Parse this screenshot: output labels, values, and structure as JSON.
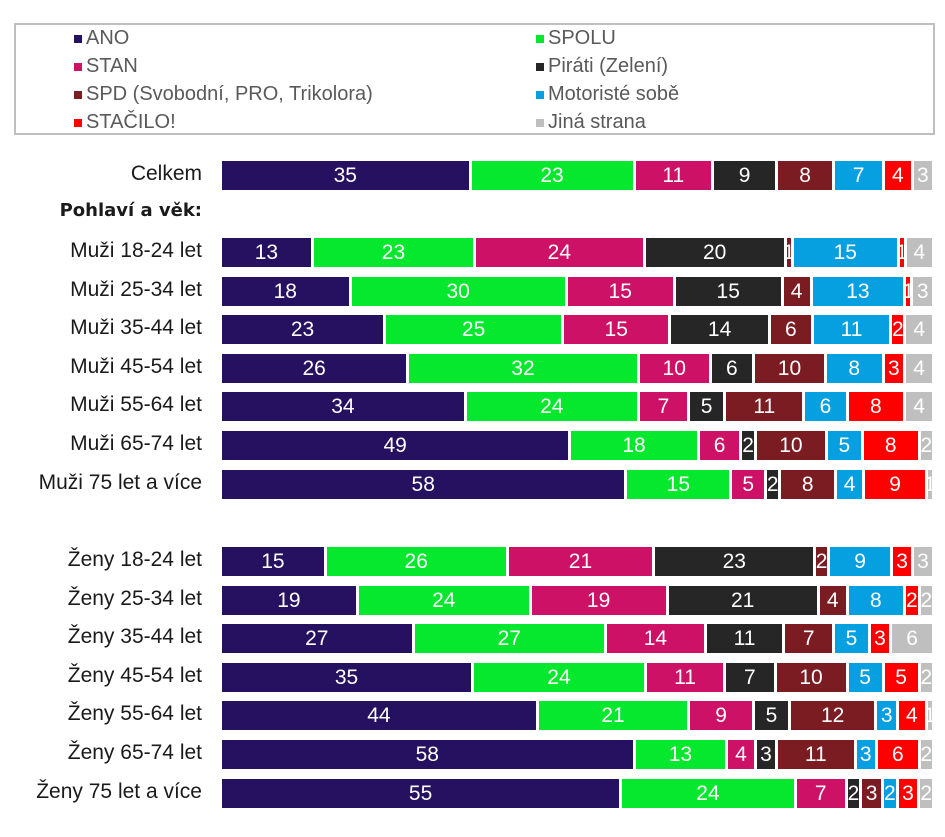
{
  "chart_data": {
    "type": "bar",
    "orientation": "horizontal",
    "stacked": true,
    "title": "",
    "xlabel": "",
    "ylabel": "",
    "xlim": [
      0,
      100
    ],
    "legend_position": "top",
    "series": [
      {
        "name": "ANO",
        "color": "#261060"
      },
      {
        "name": "SPOLU",
        "color": "#06e82e"
      },
      {
        "name": "STAN",
        "color": "#cc1166"
      },
      {
        "name": "Piráti (Zelení)",
        "color": "#262626"
      },
      {
        "name": "SPD (Svobodní, PRO, Trikolora)",
        "color": "#7a1c22"
      },
      {
        "name": "Motoristé sobě",
        "color": "#069fdf"
      },
      {
        "name": "STAČILO!",
        "color": "#ff0000"
      },
      {
        "name": "Jiná strana",
        "color": "#bfbfbf"
      }
    ],
    "legend_order": [
      0,
      1,
      2,
      3,
      4,
      5,
      6,
      7
    ],
    "section_heading": "Pohlaví a věk:",
    "rows": [
      {
        "label": "Celkem",
        "values": [
          35,
          23,
          11,
          9,
          8,
          7,
          4,
          3
        ]
      },
      {
        "label": "Muži 18-24 let",
        "values": [
          13,
          23,
          24,
          20,
          1,
          15,
          1,
          4
        ]
      },
      {
        "label": "Muži 25-34 let",
        "values": [
          18,
          30,
          15,
          15,
          4,
          13,
          1,
          3
        ]
      },
      {
        "label": "Muži 35-44 let",
        "values": [
          23,
          25,
          15,
          14,
          6,
          11,
          2,
          4
        ]
      },
      {
        "label": "Muži 45-54 let",
        "values": [
          26,
          32,
          10,
          6,
          10,
          8,
          3,
          4
        ]
      },
      {
        "label": "Muži 55-64 let",
        "values": [
          34,
          24,
          7,
          5,
          11,
          6,
          8,
          4
        ]
      },
      {
        "label": "Muži 65-74 let",
        "values": [
          49,
          18,
          6,
          2,
          10,
          5,
          8,
          2
        ]
      },
      {
        "label": "Muži 75 let a více",
        "values": [
          58,
          15,
          5,
          2,
          8,
          4,
          9,
          1
        ]
      },
      {
        "label": "Ženy 18-24 let",
        "values": [
          15,
          26,
          21,
          23,
          2,
          9,
          3,
          3
        ]
      },
      {
        "label": "Ženy 25-34 let",
        "values": [
          19,
          24,
          19,
          21,
          4,
          8,
          2,
          2
        ]
      },
      {
        "label": "Ženy 35-44 let",
        "values": [
          27,
          27,
          14,
          11,
          7,
          5,
          3,
          6
        ]
      },
      {
        "label": "Ženy 45-54 let",
        "values": [
          35,
          24,
          11,
          7,
          10,
          5,
          5,
          2
        ]
      },
      {
        "label": "Ženy 55-64 let",
        "values": [
          44,
          21,
          9,
          5,
          12,
          3,
          4,
          1
        ]
      },
      {
        "label": "Ženy 65-74 let",
        "values": [
          58,
          13,
          4,
          3,
          11,
          3,
          6,
          2
        ]
      },
      {
        "label": "Ženy 75 let a více",
        "values": [
          55,
          24,
          7,
          2,
          3,
          2,
          3,
          2
        ]
      }
    ]
  }
}
